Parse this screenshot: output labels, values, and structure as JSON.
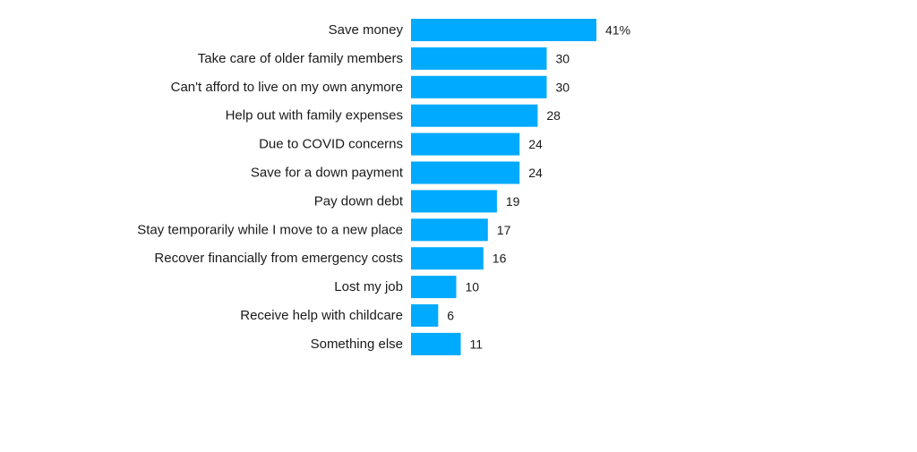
{
  "chart_data": {
    "type": "bar",
    "orientation": "horizontal",
    "bar_color": "#00aaff",
    "categories": [
      "Save money",
      "Take care of older family members",
      "Can't afford to live on my own anymore",
      "Help out with family expenses",
      "Due to COVID concerns",
      "Save for a down payment",
      "Pay down debt",
      "Stay temporarily while I move to a new place",
      "Recover financially from emergency costs",
      "Lost my job",
      "Receive help with childcare",
      "Something else"
    ],
    "values": [
      41,
      30,
      30,
      28,
      24,
      24,
      19,
      17,
      16,
      10,
      6,
      11
    ],
    "value_labels": [
      "41%",
      "30",
      "30",
      "28",
      "24",
      "24",
      "19",
      "17",
      "16",
      "10",
      "6",
      "11"
    ],
    "xlim": [
      0,
      41
    ],
    "grid": false,
    "title": "",
    "xlabel": "",
    "ylabel": ""
  }
}
